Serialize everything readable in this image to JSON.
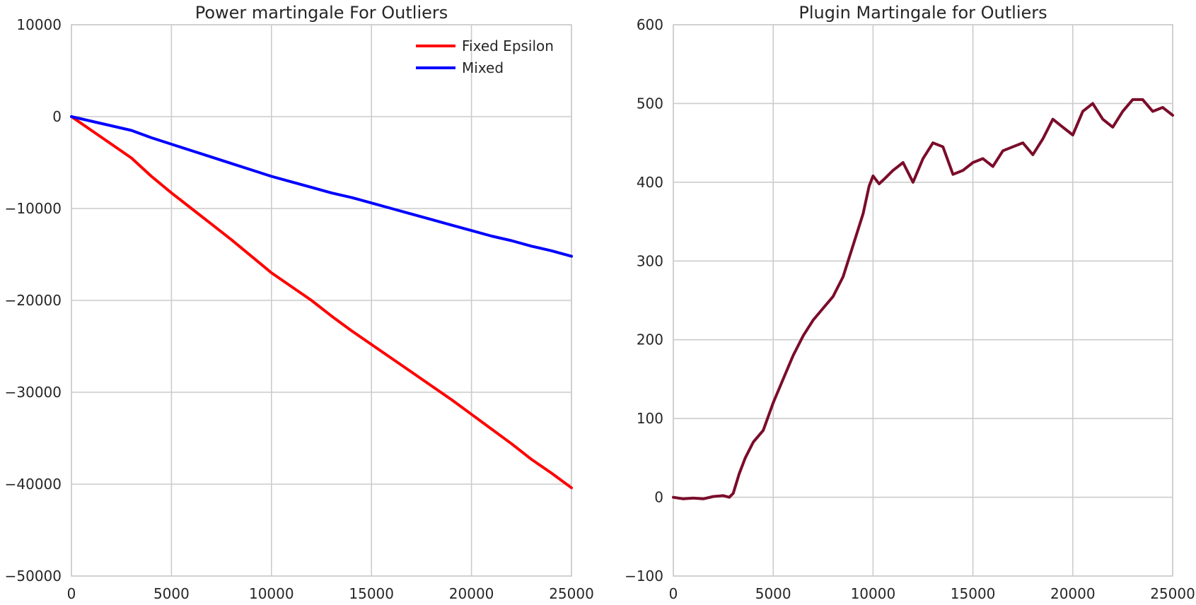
{
  "chart_data": [
    {
      "type": "line",
      "title": "Power martingale For Outliers",
      "xlabel": "",
      "ylabel": "",
      "xlim": [
        0,
        25000
      ],
      "ylim": [
        -50000,
        10000
      ],
      "xticks": [
        "0",
        "5000",
        "10000",
        "15000",
        "20000",
        "25000"
      ],
      "yticks": [
        "10000",
        "0",
        "−10000",
        "−20000",
        "−30000",
        "−40000",
        "−50000"
      ],
      "grid": true,
      "legend": "top-right",
      "series": [
        {
          "name": "Fixed Epsilon",
          "color": "#ff0000",
          "x": [
            0,
            1000,
            2000,
            3000,
            4000,
            5000,
            6000,
            7000,
            8000,
            9000,
            10000,
            11000,
            12000,
            13000,
            14000,
            15000,
            16000,
            17000,
            18000,
            19000,
            20000,
            21000,
            22000,
            23000,
            24000,
            25000
          ],
          "y": [
            0,
            -1500,
            -3000,
            -4500,
            -6500,
            -8300,
            -10000,
            -11700,
            -13400,
            -15200,
            -17000,
            -18500,
            -20000,
            -21700,
            -23300,
            -24800,
            -26300,
            -27800,
            -29300,
            -30800,
            -32400,
            -34000,
            -35600,
            -37300,
            -38800,
            -40400
          ]
        },
        {
          "name": "Mixed",
          "color": "#0000ff",
          "x": [
            0,
            1000,
            2000,
            3000,
            4000,
            5000,
            6000,
            7000,
            8000,
            9000,
            10000,
            11000,
            12000,
            13000,
            14000,
            15000,
            16000,
            17000,
            18000,
            19000,
            20000,
            21000,
            22000,
            23000,
            24000,
            25000
          ],
          "y": [
            0,
            -500,
            -1000,
            -1500,
            -2300,
            -3000,
            -3700,
            -4400,
            -5100,
            -5800,
            -6500,
            -7100,
            -7700,
            -8300,
            -8800,
            -9400,
            -10000,
            -10600,
            -11200,
            -11800,
            -12400,
            -13000,
            -13500,
            -14100,
            -14600,
            -15200
          ]
        }
      ]
    },
    {
      "type": "line",
      "title": "Plugin Martingale for Outliers",
      "xlabel": "",
      "ylabel": "",
      "xlim": [
        0,
        25000
      ],
      "ylim": [
        -100,
        600
      ],
      "xticks": [
        "0",
        "5000",
        "10000",
        "15000",
        "20000",
        "25000"
      ],
      "yticks": [
        "600",
        "500",
        "400",
        "300",
        "200",
        "100",
        "0",
        "−100"
      ],
      "grid": true,
      "series": [
        {
          "color": "#7b0c2a",
          "x": [
            0,
            500,
            1000,
            1500,
            2000,
            2500,
            2800,
            3000,
            3300,
            3600,
            4000,
            4500,
            5000,
            5500,
            6000,
            6500,
            7000,
            7500,
            8000,
            8500,
            9000,
            9500,
            9800,
            10000,
            10300,
            10600,
            11000,
            11500,
            12000,
            12500,
            13000,
            13500,
            14000,
            14500,
            15000,
            15500,
            16000,
            16500,
            17000,
            17500,
            18000,
            18500,
            19000,
            19500,
            20000,
            20500,
            21000,
            21500,
            22000,
            22500,
            23000,
            23500,
            24000,
            24500,
            25000
          ],
          "y": [
            0,
            -2,
            -1,
            -2,
            1,
            2,
            0,
            5,
            30,
            50,
            70,
            85,
            120,
            150,
            180,
            205,
            225,
            240,
            255,
            280,
            320,
            360,
            395,
            408,
            398,
            405,
            415,
            425,
            400,
            430,
            450,
            445,
            410,
            415,
            425,
            430,
            420,
            440,
            445,
            450,
            435,
            455,
            480,
            470,
            460,
            490,
            500,
            480,
            470,
            490,
            505,
            505,
            490,
            495,
            485
          ]
        }
      ]
    }
  ]
}
